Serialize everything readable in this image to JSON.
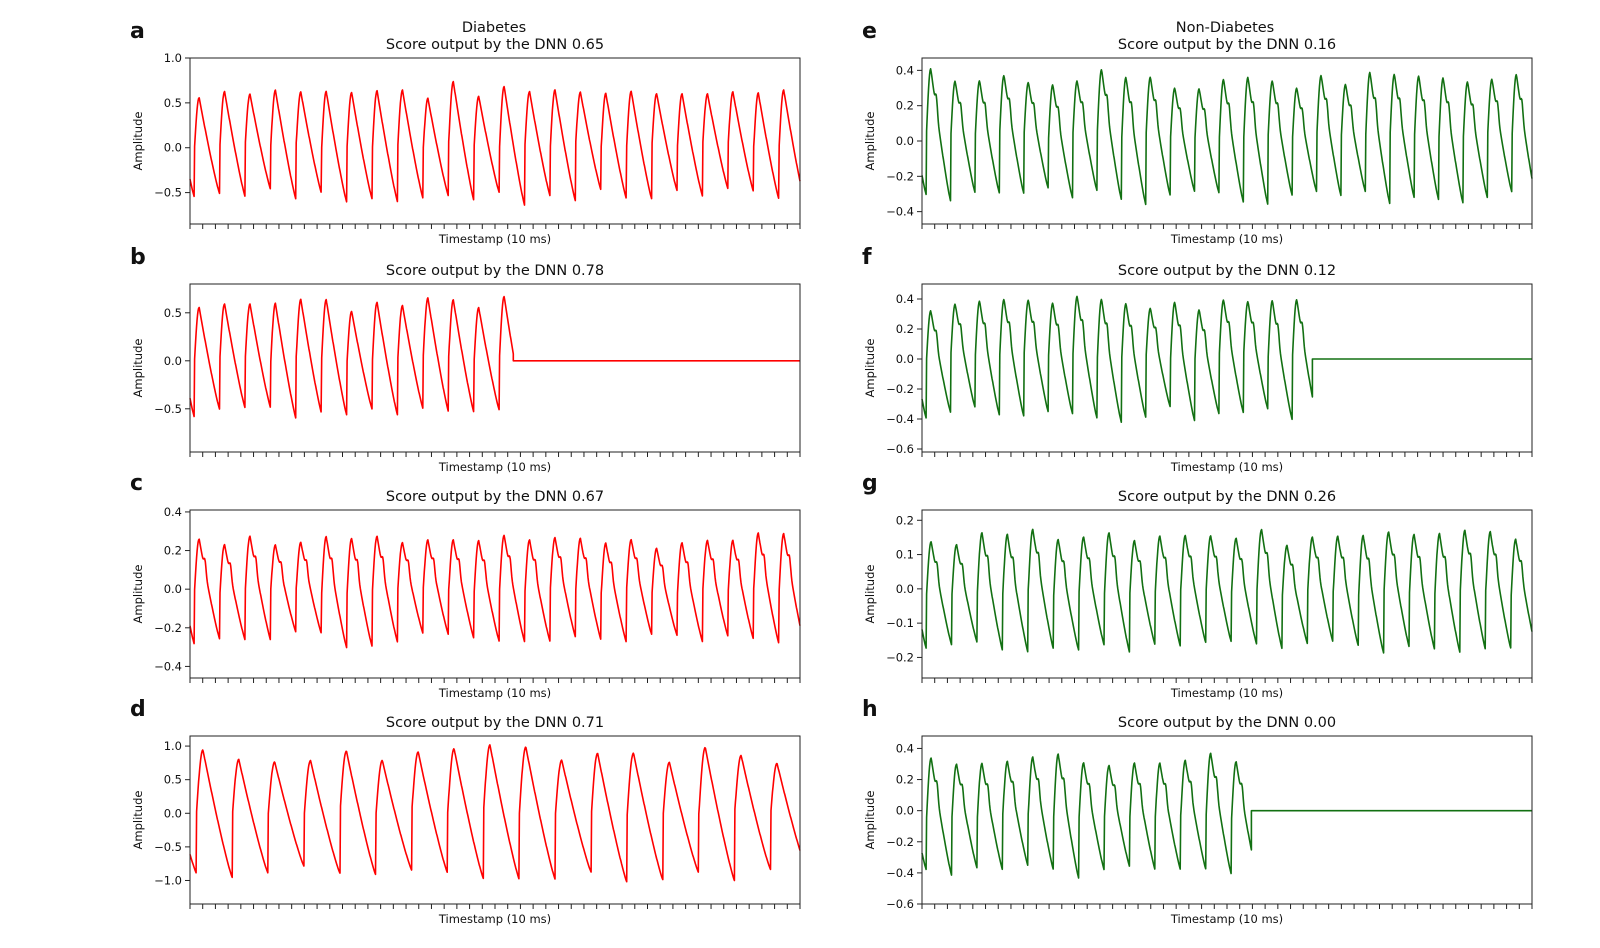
{
  "figure": {
    "column_titles": {
      "left": "Diabetes",
      "right": "Non-Diabetes"
    }
  },
  "chart_data": [
    {
      "panel": "a",
      "type": "line",
      "title": "Score output by the DNN  0.65",
      "xlabel": "Timestamp (10 ms)",
      "ylabel": "Amplitude",
      "ylim": [
        -0.85,
        1.0
      ],
      "yticks": [
        "1.0",
        "0.5",
        "0.0",
        "−0.5"
      ],
      "ytick_values": [
        1.0,
        0.5,
        0.0,
        -0.5
      ],
      "color": "#ff0000",
      "series": [
        {
          "cycles": 24,
          "peak": 0.65,
          "trough": -0.58,
          "signal_end_fraction": 1.0,
          "notch": false
        }
      ]
    },
    {
      "panel": "b",
      "type": "line",
      "title": "Score output by the DNN  0.78",
      "xlabel": "Timestamp (10 ms)",
      "ylabel": "Amplitude",
      "ylim": [
        -0.95,
        0.8
      ],
      "yticks": [
        "0.5",
        "0.0",
        "−0.5"
      ],
      "ytick_values": [
        0.5,
        0.0,
        -0.5
      ],
      "color": "#ff0000",
      "series": [
        {
          "cycles": 24,
          "peak": 0.6,
          "trough": -0.55,
          "signal_end_fraction": 0.53,
          "notch": false
        }
      ]
    },
    {
      "panel": "c",
      "type": "line",
      "title": "Score output by the DNN  0.67",
      "xlabel": "Timestamp (10 ms)",
      "ylabel": "Amplitude",
      "ylim": [
        -0.46,
        0.41
      ],
      "yticks": [
        "0.4",
        "0.2",
        "0.0",
        "−0.2",
        "−0.4"
      ],
      "ytick_values": [
        0.4,
        0.2,
        0.0,
        -0.2,
        -0.4
      ],
      "color": "#ff0000",
      "series": [
        {
          "cycles": 24,
          "peak": 0.26,
          "trough": -0.27,
          "signal_end_fraction": 1.0,
          "notch": true
        }
      ]
    },
    {
      "panel": "d",
      "type": "line",
      "title": "Score output by the DNN  0.71",
      "xlabel": "Timestamp (10 ms)",
      "ylabel": "Amplitude",
      "ylim": [
        -1.35,
        1.15
      ],
      "yticks": [
        "1.0",
        "0.5",
        "0.0",
        "−0.5",
        "−1.0"
      ],
      "ytick_values": [
        1.0,
        0.5,
        0.0,
        -0.5,
        -1.0
      ],
      "color": "#ff0000",
      "series": [
        {
          "cycles": 17,
          "peak": 0.88,
          "trough": -0.95,
          "signal_end_fraction": 1.0,
          "notch": false
        }
      ]
    },
    {
      "panel": "e",
      "type": "line",
      "title": "Score output by the DNN  0.16",
      "xlabel": "Timestamp (10 ms)",
      "ylabel": "Amplitude",
      "ylim": [
        -0.47,
        0.47
      ],
      "yticks": [
        "0.4",
        "0.2",
        "0.0",
        "−0.2",
        "−0.4"
      ],
      "ytick_values": [
        0.4,
        0.2,
        0.0,
        -0.2,
        -0.4
      ],
      "color": "#127012",
      "series": [
        {
          "cycles": 25,
          "peak": 0.36,
          "trough": -0.33,
          "signal_end_fraction": 1.0,
          "notch": true
        }
      ]
    },
    {
      "panel": "f",
      "type": "line",
      "title": "Score output by the DNN  0.12",
      "xlabel": "Timestamp (10 ms)",
      "ylabel": "Amplitude",
      "ylim": [
        -0.62,
        0.5
      ],
      "yticks": [
        "0.4",
        "0.2",
        "0.0",
        "−0.2",
        "−0.4",
        "−0.6"
      ],
      "ytick_values": [
        0.4,
        0.2,
        0.0,
        -0.2,
        -0.4,
        -0.6
      ],
      "color": "#127012",
      "series": [
        {
          "cycles": 25,
          "peak": 0.38,
          "trough": -0.38,
          "signal_end_fraction": 0.64,
          "notch": true
        }
      ]
    },
    {
      "panel": "g",
      "type": "line",
      "title": "Score output by the DNN  0.26",
      "xlabel": "Timestamp (10 ms)",
      "ylabel": "Amplitude",
      "ylim": [
        -0.26,
        0.23
      ],
      "yticks": [
        "0.2",
        "0.1",
        "0.0",
        "−0.1",
        "−0.2"
      ],
      "ytick_values": [
        0.2,
        0.1,
        0.0,
        -0.1,
        -0.2
      ],
      "color": "#127012",
      "series": [
        {
          "cycles": 24,
          "peak": 0.15,
          "trough": -0.17,
          "signal_end_fraction": 1.0,
          "notch": true
        }
      ]
    },
    {
      "panel": "h",
      "type": "line",
      "title": "Score output by the DNN  0.00",
      "xlabel": "Timestamp (10 ms)",
      "ylabel": "Amplitude",
      "ylim": [
        -0.6,
        0.48
      ],
      "yticks": [
        "0.4",
        "0.2",
        "0.0",
        "−0.2",
        "−0.4",
        "−0.6"
      ],
      "ytick_values": [
        0.4,
        0.2,
        0.0,
        -0.2,
        -0.4,
        -0.6
      ],
      "color": "#127012",
      "series": [
        {
          "cycles": 24,
          "peak": 0.34,
          "trough": -0.42,
          "signal_end_fraction": 0.54,
          "notch": true
        }
      ]
    }
  ]
}
